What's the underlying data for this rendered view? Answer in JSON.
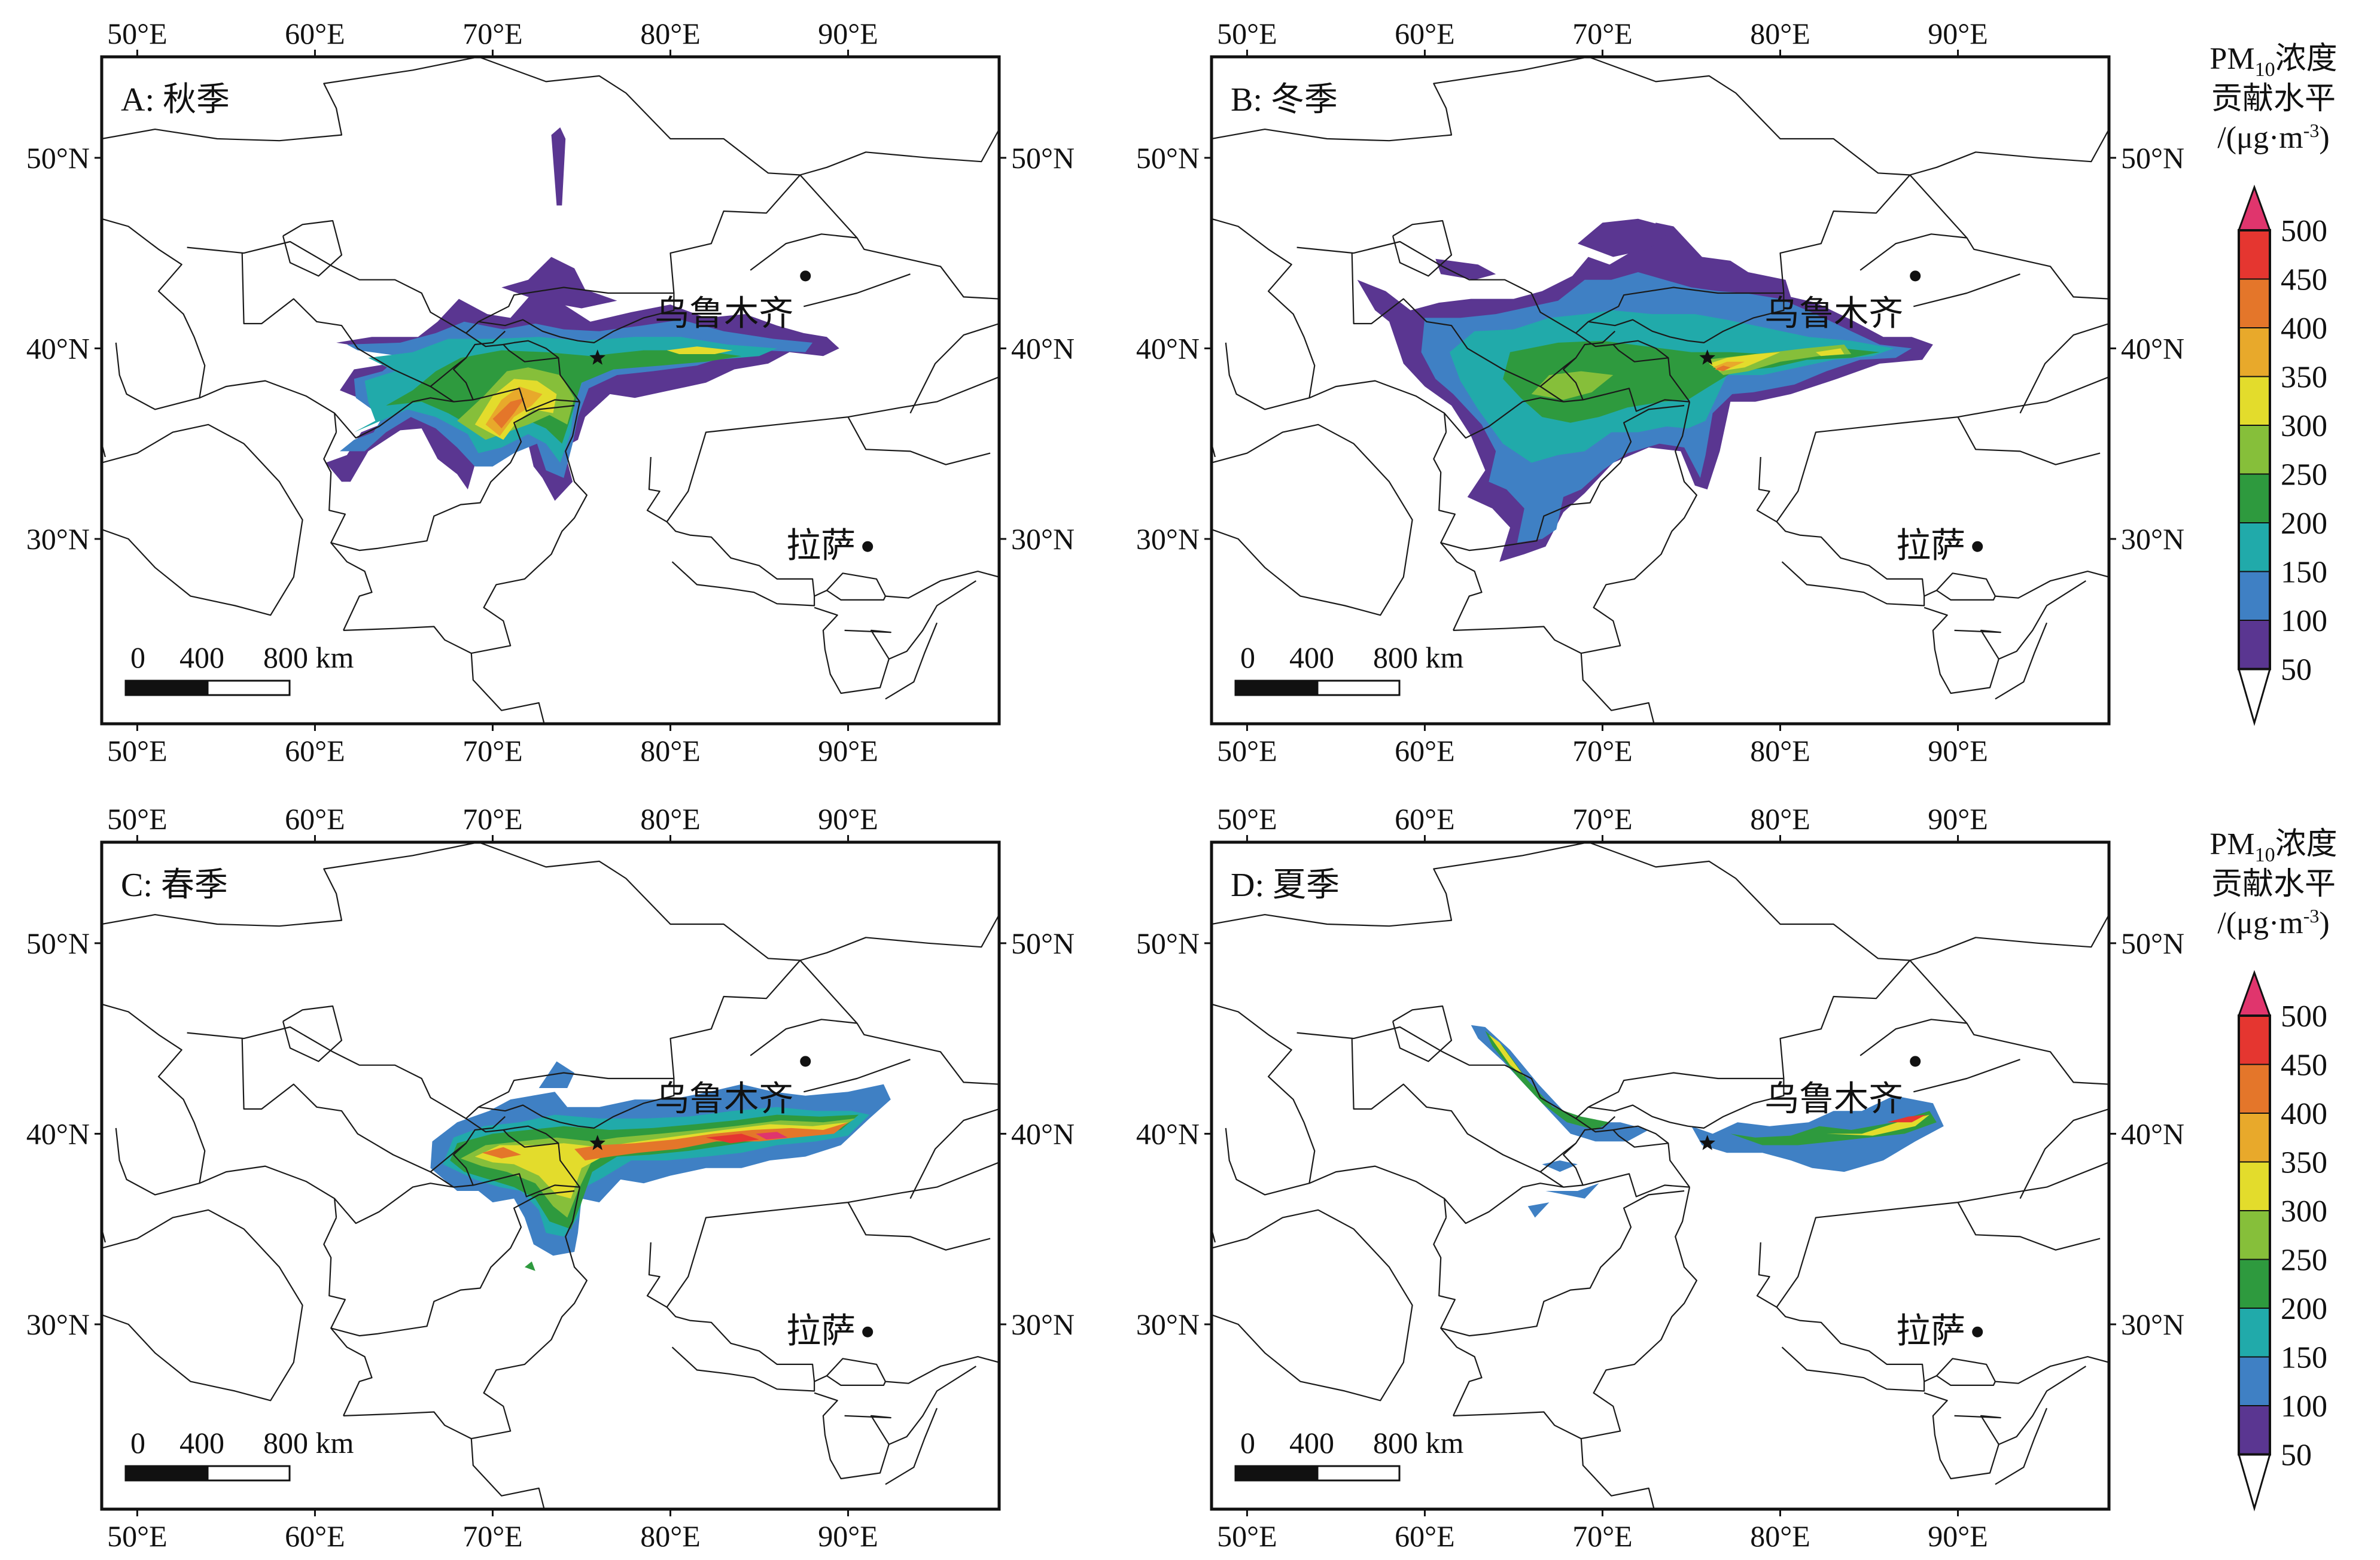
{
  "panels": [
    {
      "id": "A",
      "label": "A: 秋季",
      "season": "秋季"
    },
    {
      "id": "B",
      "label": "B: 冬季",
      "season": "冬季"
    },
    {
      "id": "C",
      "label": "C: 春季",
      "season": "春季"
    },
    {
      "id": "D",
      "label": "D: 夏季",
      "season": "夏季"
    }
  ],
  "lon_ticks": [
    "50°E",
    "60°E",
    "70°E",
    "80°E",
    "90°E"
  ],
  "lat_ticks": [
    "50°N",
    "40°N",
    "30°N"
  ],
  "cities": [
    {
      "name": "乌鲁木齐",
      "lon": 87.6,
      "lat": 43.8
    },
    {
      "name": "拉萨",
      "lon": 91.1,
      "lat": 29.6
    }
  ],
  "source_marker": {
    "symbol": "star",
    "lon": 75.9,
    "lat": 39.5
  },
  "scalebar": {
    "labels": [
      "0",
      "400",
      "800 km"
    ]
  },
  "colorbar": {
    "title_main": "PM",
    "title_sub": "10",
    "title_rest": "浓度",
    "line2": "贡献水平",
    "line3_pre": "/(μg·m",
    "line3_sup": "-3",
    "line3_post": ")",
    "levels": [
      "50",
      "100",
      "150",
      "200",
      "250",
      "300",
      "350",
      "400",
      "450",
      "500"
    ],
    "colors": [
      "#5a3691",
      "#3f80c4",
      "#21aaaa",
      "#2e9a3e",
      "#86bf3a",
      "#e3dc2c",
      "#e8a92b",
      "#e4762a",
      "#e53630",
      "#e0356d"
    ]
  }
}
